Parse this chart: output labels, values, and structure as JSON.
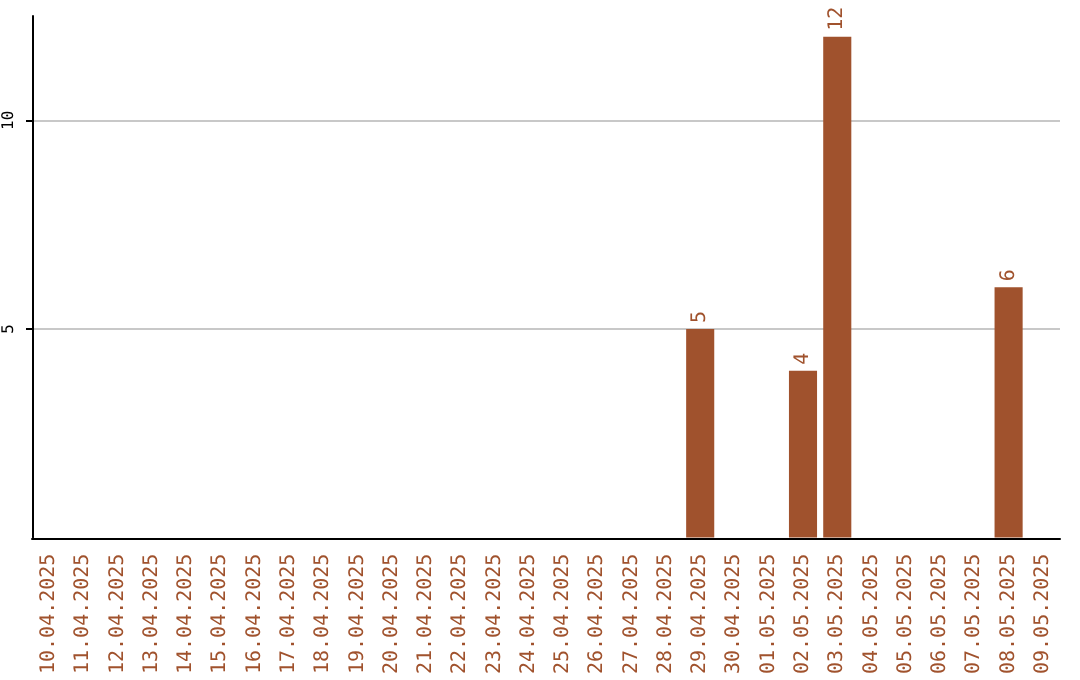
{
  "chart_data": {
    "type": "bar",
    "categories": [
      "10.04.2025",
      "11.04.2025",
      "12.04.2025",
      "13.04.2025",
      "14.04.2025",
      "15.04.2025",
      "16.04.2025",
      "17.04.2025",
      "18.04.2025",
      "19.04.2025",
      "20.04.2025",
      "21.04.2025",
      "22.04.2025",
      "23.04.2025",
      "24.04.2025",
      "25.04.2025",
      "26.04.2025",
      "27.04.2025",
      "28.04.2025",
      "29.04.2025",
      "30.04.2025",
      "01.05.2025",
      "02.05.2025",
      "03.05.2025",
      "04.05.2025",
      "05.05.2025",
      "06.05.2025",
      "07.05.2025",
      "08.05.2025",
      "09.05.2025"
    ],
    "values": [
      0,
      0,
      0,
      0,
      0,
      0,
      0,
      0,
      0,
      0,
      0,
      0,
      0,
      0,
      0,
      0,
      0,
      0,
      0,
      5,
      0,
      0,
      4,
      12,
      0,
      0,
      0,
      0,
      6,
      0
    ],
    "value_labels": [
      null,
      null,
      null,
      null,
      null,
      null,
      null,
      null,
      null,
      null,
      null,
      null,
      null,
      null,
      null,
      null,
      null,
      null,
      null,
      "5",
      null,
      null,
      "4",
      "12",
      null,
      null,
      null,
      null,
      "6",
      null
    ],
    "color": "#a0522d",
    "ylim": [
      0,
      12.5
    ],
    "yticks": [
      5,
      10
    ],
    "grid": "y"
  }
}
